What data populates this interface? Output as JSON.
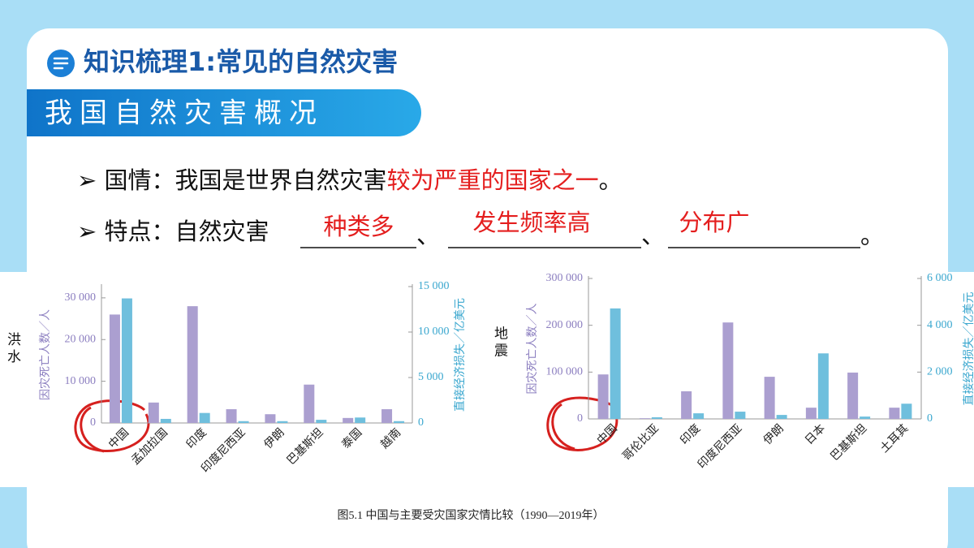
{
  "slide": {
    "title": "知识梳理1:常见的自然灾害",
    "subtitle": "我国自然灾害概况",
    "bullets": [
      {
        "label": "国情：",
        "text": "我国是世界自然灾害",
        "highlight": "较为严重的国家之一",
        "end": "。"
      },
      {
        "label": "特点：",
        "text": "自然灾害",
        "answers": [
          "种类多",
          "发生频率高",
          "分布广"
        ],
        "separators": [
          "、",
          "、",
          "。"
        ]
      }
    ],
    "caption": "图5.1 中国与主要受灾国家灾情比较（1990—2019年）"
  },
  "chart_data": [
    {
      "type": "bar",
      "side_label": "洪水",
      "y_label": "因灾死亡人数／人",
      "y2_label": "直接经济损失／亿美元",
      "categories": [
        "中国",
        "孟加拉国",
        "印度",
        "印度尼西亚",
        "伊朗",
        "巴基斯坦",
        "泰国",
        "越南"
      ],
      "series": [
        {
          "color": "#ab9fd0",
          "values": [
            26000,
            4900,
            28000,
            3300,
            2100,
            9200,
            1200,
            3300
          ]
        },
        {
          "color": "#6fbfdd",
          "axis": "y2",
          "values": [
            13700,
            450,
            1100,
            200,
            200,
            350,
            600,
            200
          ]
        }
      ],
      "ylim": [
        0,
        32700
      ],
      "yticks": [
        0,
        {
          "value": 10000,
          "label": "10 000"
        },
        {
          "value": 20000,
          "label": "20 000"
        },
        {
          "value": 30000,
          "label": "30 000"
        }
      ],
      "y2lim": [
        0,
        15000
      ],
      "y2ticks": [
        0,
        {
          "value": 5000,
          "label": "5 000"
        },
        {
          "value": 10000,
          "label": "10 000"
        },
        {
          "value": 15000,
          "label": "15 000"
        }
      ]
    },
    {
      "type": "bar",
      "side_label": "地震",
      "y_label": "因灾死亡人数／人",
      "y2_label": "直接经济损失／亿美元",
      "categories": [
        "中国",
        "哥伦比亚",
        "印度",
        "印度尼西亚",
        "伊朗",
        "日本",
        "巴基斯坦",
        "土耳其"
      ],
      "series": [
        {
          "color": "#ab9fd0",
          "values": [
            95000,
            1500,
            59000,
            206000,
            90000,
            24000,
            99000,
            24000
          ]
        },
        {
          "color": "#6fbfdd",
          "axis": "y2",
          "values": [
            4720,
            70,
            240,
            310,
            170,
            2800,
            100,
            650
          ]
        }
      ],
      "ylim": [
        0,
        300000
      ],
      "yticks": [
        0,
        {
          "value": 100000,
          "label": "100 000"
        },
        {
          "value": 200000,
          "label": "200 000"
        },
        {
          "value": 300000,
          "label": "300 000"
        }
      ],
      "y2lim": [
        0,
        6000
      ],
      "y2ticks": [
        0,
        {
          "value": 2000,
          "label": "2 000"
        },
        {
          "value": 4000,
          "label": "4 000"
        },
        {
          "value": 6000,
          "label": "6 000"
        }
      ]
    }
  ]
}
